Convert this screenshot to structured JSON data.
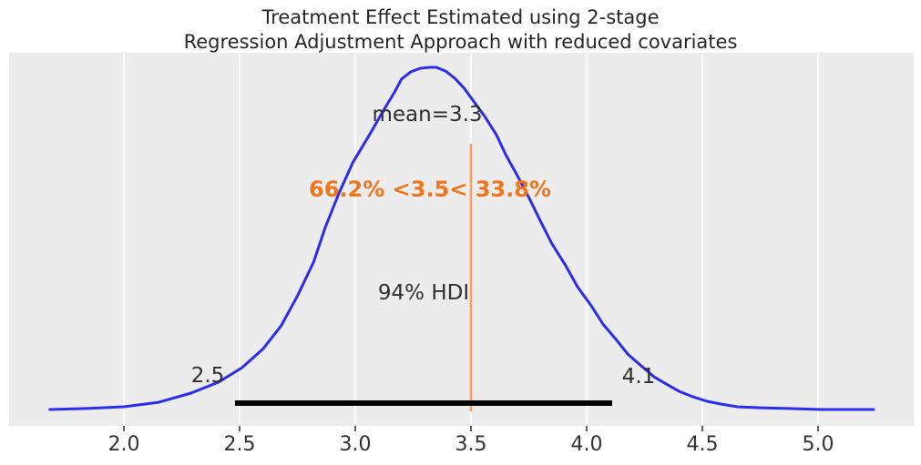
{
  "chart_data": {
    "type": "line",
    "subtype": "posterior-kde-density",
    "title_line1": "Treatment Effect Estimated using 2-stage",
    "title_line2": "Regression Adjustment Approach with reduced covariates",
    "xlabel": "",
    "ylabel": "",
    "xlim": [
      1.5,
      5.41
    ],
    "grid": "vertical-white-gridlines",
    "legend": "none",
    "x_ticks": [
      2.0,
      2.5,
      3.0,
      3.5,
      4.0,
      4.5,
      5.0
    ],
    "x_tick_labels": [
      "2.0",
      "2.5",
      "3.0",
      "3.5",
      "4.0",
      "4.5",
      "5.0"
    ],
    "kde": {
      "x": [
        1.68,
        1.84,
        2.0,
        2.15,
        2.29,
        2.41,
        2.51,
        2.6,
        2.68,
        2.75,
        2.82,
        2.87,
        2.93,
        2.99,
        3.06,
        3.12,
        3.17,
        3.2,
        3.24,
        3.28,
        3.32,
        3.35,
        3.39,
        3.43,
        3.47,
        3.51,
        3.56,
        3.61,
        3.65,
        3.7,
        3.75,
        3.8,
        3.85,
        3.91,
        3.96,
        4.02,
        4.07,
        4.13,
        4.18,
        4.24,
        4.29,
        4.35,
        4.4,
        4.46,
        4.52,
        4.58,
        4.65,
        4.75,
        4.87,
        5.01,
        5.13,
        5.24
      ],
      "density_normalized": [
        0,
        0.003,
        0.008,
        0.021,
        0.048,
        0.08,
        0.122,
        0.176,
        0.245,
        0.332,
        0.431,
        0.532,
        0.633,
        0.723,
        0.801,
        0.872,
        0.928,
        0.966,
        0.987,
        0.997,
        1.0,
        1.0,
        0.989,
        0.968,
        0.939,
        0.902,
        0.856,
        0.803,
        0.745,
        0.684,
        0.62,
        0.551,
        0.484,
        0.42,
        0.359,
        0.303,
        0.25,
        0.202,
        0.16,
        0.125,
        0.096,
        0.072,
        0.053,
        0.037,
        0.024,
        0.016,
        0.008,
        0.005,
        0.003,
        0.0,
        0.0,
        0.0
      ]
    },
    "mean": {
      "value": 3.3,
      "label": "mean=3.3"
    },
    "ref_val": {
      "value": 3.5,
      "pct_below": "66.2%",
      "pct_above": "33.8%",
      "label": "66.2% <3.5< 33.8%"
    },
    "hdi": {
      "prob": "94%",
      "label": "94% HDI",
      "lower": 2.48,
      "upper": 4.11,
      "lower_label": "2.5",
      "upper_label": "4.1"
    },
    "colors": {
      "curve": "#2a2eec",
      "ref_line": "#f2a06a",
      "ref_text": "#f0761d",
      "hdi_bar": "#000000",
      "plot_bg": "#ececec",
      "figure_bg": "#ffffff",
      "grid": "#ffffff",
      "title_text": "#262626",
      "annotation_text": "#2f2f2f",
      "tick_text": "#333333"
    }
  }
}
